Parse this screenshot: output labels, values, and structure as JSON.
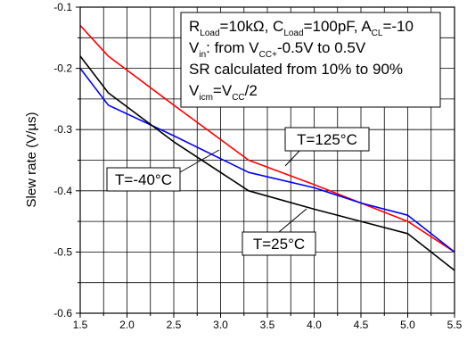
{
  "chart_data": {
    "type": "line",
    "title": "",
    "xlabel": "",
    "ylabel": "Slew rate (V/µs)",
    "xlim": [
      1.5,
      5.5
    ],
    "ylim": [
      -0.6,
      -0.1
    ],
    "grid": true,
    "x_ticks": [
      1.5,
      2.0,
      2.5,
      3.0,
      3.5,
      4.0,
      4.5,
      5.0,
      5.5
    ],
    "x_tick_labels": [
      "1.5",
      "2.0",
      "2.5",
      "3.0",
      "3.5",
      "4.0",
      "4.5",
      "5.0",
      "5.5"
    ],
    "y_ticks": [
      -0.6,
      -0.5,
      -0.4,
      -0.3,
      -0.2,
      -0.1
    ],
    "y_tick_labels": [
      "-0.6",
      "-0.5",
      "-0.4",
      "-0.3",
      "-0.2",
      "-0.1"
    ],
    "series": [
      {
        "color": "#ff0000",
        "label": "T=125°C",
        "x": [
          1.5,
          1.8,
          2.5,
          3.3,
          4.0,
          4.5,
          5.0,
          5.5
        ],
        "values": [
          -0.13,
          -0.18,
          -0.26,
          -0.35,
          -0.39,
          -0.42,
          -0.45,
          -0.5
        ]
      },
      {
        "color": "#0000ff",
        "label": "T=-40°C",
        "x": [
          1.5,
          1.8,
          2.5,
          3.3,
          4.0,
          4.5,
          5.0,
          5.5
        ],
        "values": [
          -0.2,
          -0.26,
          -0.31,
          -0.37,
          -0.395,
          -0.42,
          -0.44,
          -0.5
        ]
      },
      {
        "color": "#000000",
        "label": "T=25°C",
        "x": [
          1.5,
          1.8,
          2.5,
          3.3,
          4.0,
          4.5,
          5.0,
          5.5
        ],
        "values": [
          -0.18,
          -0.24,
          -0.32,
          -0.4,
          -0.43,
          -0.45,
          -0.47,
          -0.53
        ]
      }
    ],
    "conditions": {
      "line1": {
        "p1": "R",
        "s1": "Load",
        "p2": "=10kΩ, C",
        "s2": "Load",
        "p3": "=100pF, A",
        "s3": "CL",
        "p4": "=-10"
      },
      "line2": {
        "p1": "V",
        "s1": "in",
        "p2": ": from V",
        "s2": "CC+",
        "p3": "-0.5V to 0.5V"
      },
      "line3": "SR calculated from 10% to 90%",
      "line4": {
        "p1": "V",
        "s1": "icm",
        "p2": "=V",
        "s2": "CC",
        "p3": "/2"
      }
    },
    "callouts": [
      {
        "text": "T=125°C",
        "series": 0
      },
      {
        "text": "T=-40°C",
        "series": 1
      },
      {
        "text": "T=25°C",
        "series": 2
      }
    ]
  }
}
